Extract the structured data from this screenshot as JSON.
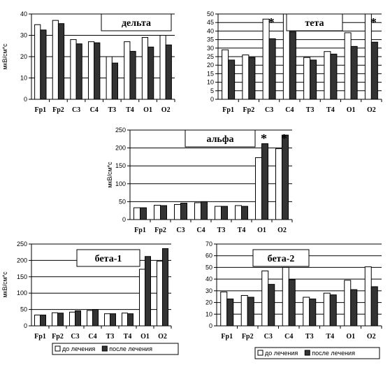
{
  "colors": {
    "before": "#ffffff",
    "after": "#333333",
    "grid": "#000000"
  },
  "chart_data": [
    {
      "type": "bar",
      "title": "дельта",
      "ylabel": "мкВ/см*с",
      "ylim": [
        0,
        40
      ],
      "yticks": [
        0,
        10,
        20,
        30,
        40
      ],
      "categories": [
        "Fp1",
        "Fp2",
        "C3",
        "C4",
        "T3",
        "T4",
        "O1",
        "O2"
      ],
      "series": [
        {
          "values": [
            35,
            37,
            28,
            27,
            20,
            27,
            29,
            30
          ]
        },
        {
          "values": [
            32.5,
            35.5,
            26,
            26.5,
            17,
            22.5,
            24.5,
            25.5
          ]
        }
      ],
      "stars": []
    },
    {
      "type": "bar",
      "title": "тета",
      "ylabel": "",
      "ylim": [
        0,
        50
      ],
      "yticks": [
        0,
        5,
        10,
        15,
        20,
        25,
        30,
        35,
        40,
        45,
        50
      ],
      "categories": [
        "Fp1",
        "Fp2",
        "C3",
        "C4",
        "T3",
        "T4",
        "O1",
        "O2"
      ],
      "series": [
        {
          "values": [
            29,
            26,
            47,
            50,
            24.5,
            28,
            39,
            50.5
          ]
        },
        {
          "values": [
            23,
            24.5,
            35.5,
            39.5,
            23,
            26.5,
            31,
            33.5
          ]
        }
      ],
      "stars": [
        {
          "category": "C3",
          "text": "*"
        },
        {
          "category": "O2",
          "text": "*"
        }
      ]
    },
    {
      "type": "bar",
      "title": "альфа",
      "ylabel": "мкВ/см*с",
      "ylim": [
        0,
        250
      ],
      "yticks": [
        0,
        50,
        100,
        150,
        200,
        250
      ],
      "categories": [
        "Fp1",
        "Fp2",
        "C3",
        "C4",
        "T3",
        "T4",
        "O1",
        "O2"
      ],
      "series": [
        {
          "values": [
            33,
            40,
            42,
            47,
            37,
            39,
            173,
            198
          ]
        },
        {
          "values": [
            33,
            39,
            46,
            50,
            37,
            37,
            212,
            236
          ]
        }
      ],
      "stars": [
        {
          "category": "O1",
          "text": "*"
        },
        {
          "category": "O2",
          "text": "*"
        }
      ]
    },
    {
      "type": "bar",
      "title": "бета-1",
      "ylabel": "мкВ/см*с",
      "ylim": [
        0,
        250
      ],
      "yticks": [
        0,
        50,
        100,
        150,
        200,
        250
      ],
      "categories": [
        "Fp1",
        "Fp2",
        "C3",
        "C4",
        "T3",
        "T4",
        "O1",
        "O2"
      ],
      "series": [
        {
          "name": "до лечения",
          "values": [
            33,
            40,
            42,
            47,
            37,
            39,
            173,
            198
          ]
        },
        {
          "name": "после лечения",
          "values": [
            33,
            39,
            46,
            50,
            37,
            37,
            212,
            236
          ]
        }
      ],
      "stars": [],
      "legend": "bottom"
    },
    {
      "type": "bar",
      "title": "бета-2",
      "ylabel": "",
      "ylim": [
        0,
        70
      ],
      "yticks": [
        0,
        10,
        20,
        30,
        40,
        50,
        60,
        70
      ],
      "categories": [
        "Fp1",
        "Fp2",
        "C3",
        "C4",
        "T3",
        "T4",
        "O1",
        "O2"
      ],
      "series": [
        {
          "name": "до лечения",
          "values": [
            29,
            26,
            47,
            50,
            24.5,
            28,
            39,
            50.5
          ]
        },
        {
          "name": "после лечения",
          "values": [
            23,
            24.5,
            35.5,
            39.5,
            23,
            26.5,
            31,
            33.5
          ]
        }
      ],
      "stars": [],
      "legend": "bottom"
    }
  ]
}
